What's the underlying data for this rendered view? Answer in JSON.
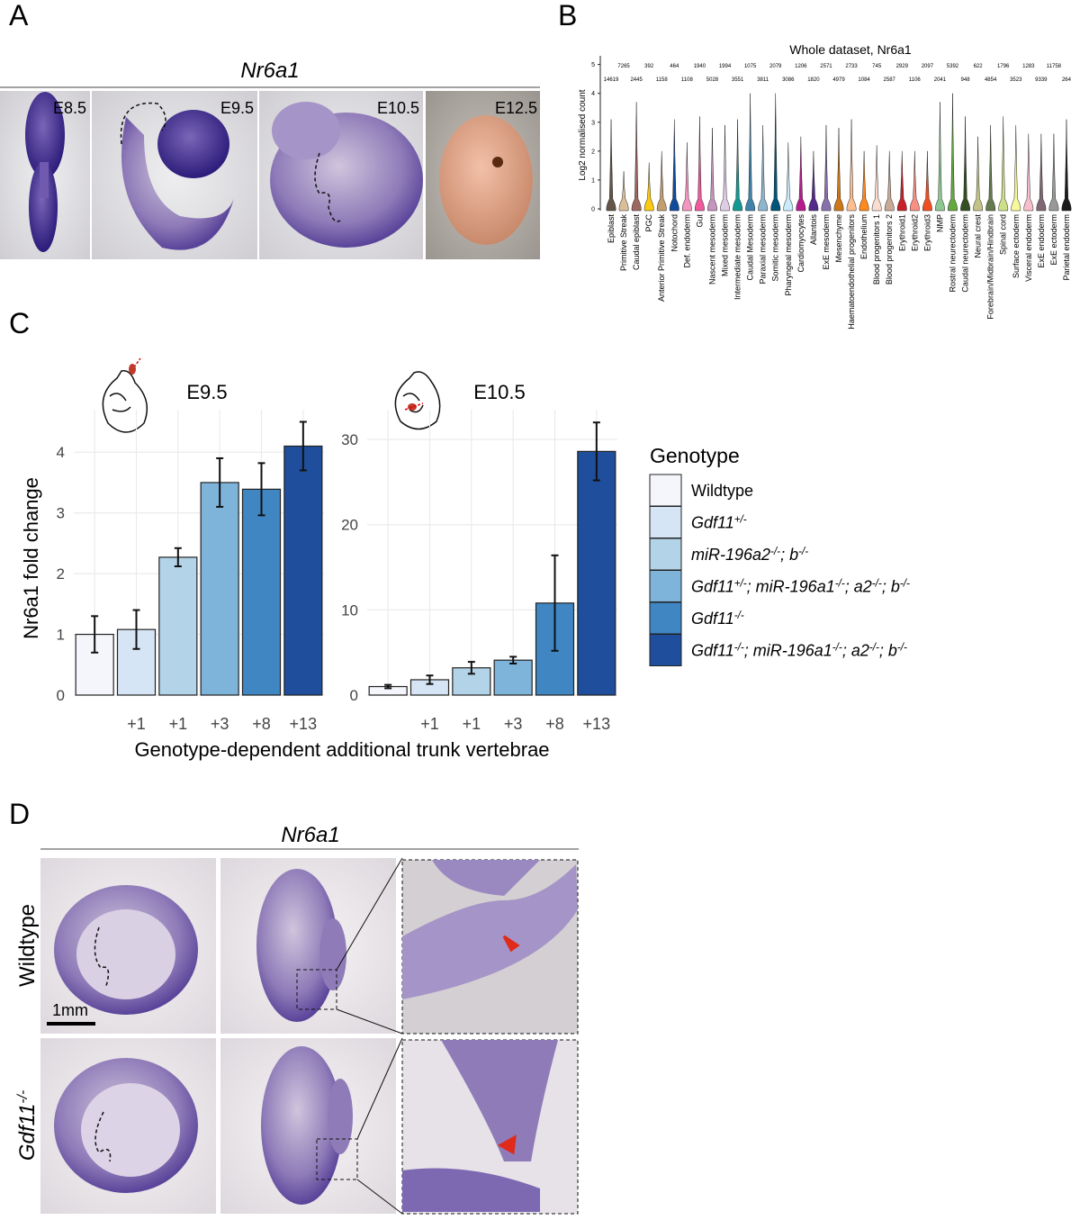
{
  "panel_labels": [
    "A",
    "B",
    "C",
    "D"
  ],
  "panel_a": {
    "title": "Nr6a1",
    "stages": [
      "E8.5",
      "E9.5",
      "E10.5",
      "E12.5"
    ]
  },
  "chart_data": [
    {
      "type": "violin",
      "title": "Whole dataset, Nr6a1",
      "ylabel": "Log2 normalised count",
      "categories": [
        "Epiblast",
        "Primitive Streak",
        "Caudal epiblast",
        "PGC",
        "Anterior Primitive Streak",
        "Notochord",
        "Def. endoderm",
        "Gut",
        "Nascent mesoderm",
        "Mixed mesoderm",
        "Intermediate mesoderm",
        "Caudal Mesoderm",
        "Paraxial mesoderm",
        "Somitic mesoderm",
        "Pharyngeal mesoderm",
        "Cardiomyocytes",
        "Allantois",
        "ExE mesoderm",
        "Mesenchyme",
        "Haematoendothelial progenitors",
        "Endothelium",
        "Blood progenitors 1",
        "Blood progenitors 2",
        "Erythroid1",
        "Erythroid2",
        "Erythroid3",
        "NMP",
        "Rostral neurectoderm",
        "Caudal neurectoderm",
        "Neural crest",
        "Forebrain/Midbrain/Hindbrain",
        "Spinal cord",
        "Surface ectoderm",
        "Visceral endoderm",
        "ExE endoderm",
        "ExE ectoderm",
        "Parietal endoderm"
      ],
      "counts": [
        14619,
        7265,
        2445,
        392,
        1158,
        464,
        1108,
        1940,
        5028,
        1994,
        3551,
        1075,
        3811,
        2079,
        3086,
        1206,
        1820,
        2571,
        4979,
        2733,
        1084,
        745,
        2587,
        2929,
        1106,
        2097,
        2041,
        5392,
        948,
        622,
        4854,
        1796,
        3523,
        1283,
        9339,
        11758,
        264
      ],
      "max_values": [
        3.1,
        1.3,
        3.7,
        1.6,
        2.0,
        3.1,
        2.3,
        3.2,
        2.8,
        2.9,
        3.1,
        4.0,
        2.9,
        4.0,
        2.3,
        2.5,
        2.0,
        2.9,
        2.8,
        3.1,
        2.0,
        2.2,
        2.0,
        2.0,
        2.0,
        2.0,
        3.7,
        4.0,
        3.2,
        2.5,
        2.9,
        3.2,
        2.9,
        2.6,
        2.6,
        2.6,
        3.1
      ],
      "colors": [
        "#635547",
        "#dabe99",
        "#9e6762",
        "#facb12",
        "#c19f70",
        "#0f4a9c",
        "#f397c0",
        "#ef5a9d",
        "#c594bf",
        "#dfcde4",
        "#139992",
        "#3f84aa",
        "#8db5ce",
        "#005579",
        "#c9ebfb",
        "#b51d8d",
        "#532c8a",
        "#8870ad",
        "#cc7818",
        "#fbbe92",
        "#ff891c",
        "#f9decf",
        "#c9a997",
        "#c72228",
        "#f79083",
        "#ef4e22",
        "#8ec792",
        "#65a83e",
        "#354e23",
        "#c3c388",
        "#647a4f",
        "#cde088",
        "#f7f79e",
        "#f6bfcb",
        "#7f6874",
        "#989898",
        "#1a1a1a"
      ],
      "ylim": [
        0,
        5.3
      ],
      "yticks": [
        0,
        1,
        2,
        3,
        4,
        5
      ]
    },
    {
      "type": "bar",
      "title": "E9.5",
      "ylabel": "Nr6a1 fold change",
      "xlabel": "Genotype-dependent additional trunk vertebrae",
      "categories": [
        null,
        "+1",
        "+1",
        "+3",
        "+8",
        "+13"
      ],
      "values": [
        1.0,
        1.08,
        2.27,
        3.5,
        3.39,
        4.1
      ],
      "errors": [
        0.3,
        0.32,
        0.15,
        0.4,
        0.43,
        0.4
      ],
      "colors": [
        "#f4f6fc",
        "#d6e5f5",
        "#b2d3e8",
        "#7fb4da",
        "#3f86c3",
        "#1f4e9c"
      ],
      "ylim": [
        0,
        4.7
      ],
      "yticks": [
        0,
        1,
        2,
        3,
        4
      ],
      "grid": true,
      "legend": {
        "title": "Genotype",
        "entries": [
          "Wildtype",
          "Gdf11+/-",
          "miR-196a2-/-; b-/-",
          "Gdf11+/-; miR-196a1-/-; a2-/-; b-/-",
          "Gdf11-/-",
          "Gdf11-/-; miR-196a1-/-; a2-/-; b-/-"
        ]
      }
    },
    {
      "type": "bar",
      "title": "E10.5",
      "categories": [
        null,
        "+1",
        "+1",
        "+3",
        "+8",
        "+13"
      ],
      "values": [
        1.0,
        1.8,
        3.2,
        4.1,
        10.8,
        28.6
      ],
      "errors": [
        0.2,
        0.5,
        0.7,
        0.4,
        5.6,
        3.4
      ],
      "colors": [
        "#f4f6fc",
        "#d6e5f5",
        "#b2d3e8",
        "#7fb4da",
        "#3f86c3",
        "#1f4e9c"
      ],
      "ylim": [
        0,
        33.5
      ],
      "yticks": [
        0,
        10,
        20,
        30
      ],
      "grid": true
    }
  ],
  "panel_d": {
    "title": "Nr6a1",
    "rows": [
      "Wildtype",
      "Gdf11-/-"
    ],
    "scale_bar": "1mm"
  }
}
